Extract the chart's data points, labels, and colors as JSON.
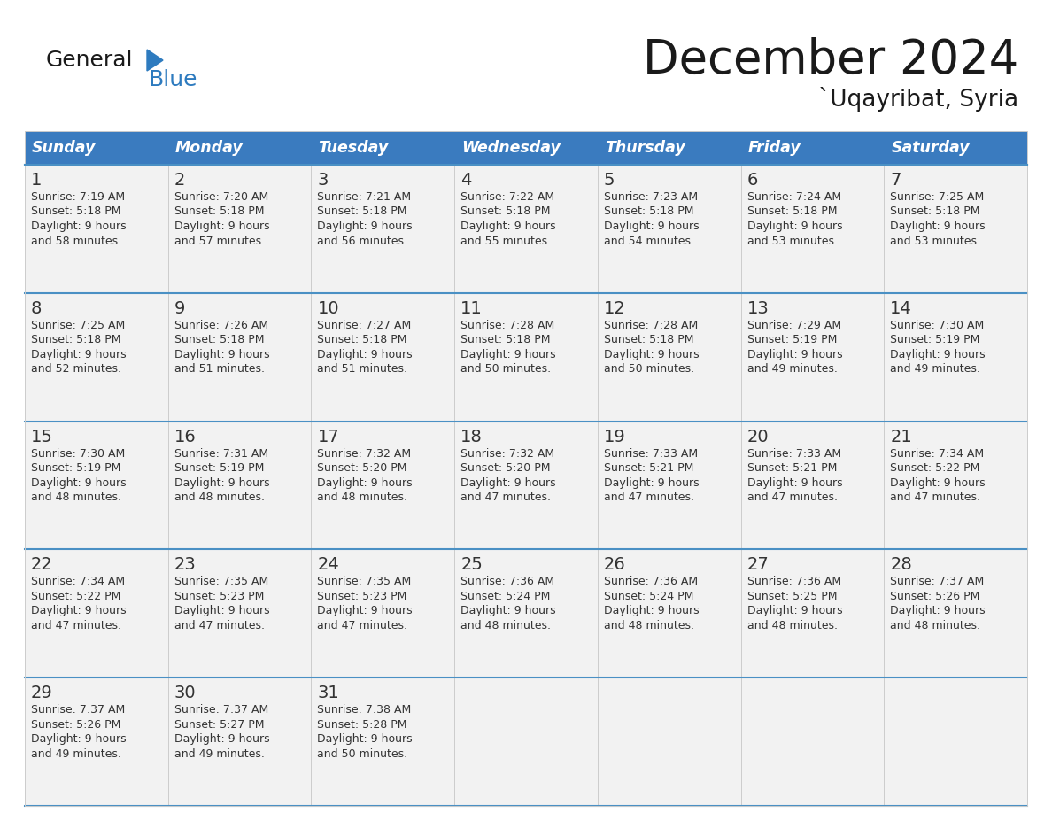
{
  "title": "December 2024",
  "subtitle": "`Uqayribat, Syria",
  "header_bg": "#3a7bbf",
  "header_text_color": "#FFFFFF",
  "cell_bg": "#f2f2f2",
  "row_separator_color": "#4a90c4",
  "col_separator_color": "#cccccc",
  "day_headers": [
    "Sunday",
    "Monday",
    "Tuesday",
    "Wednesday",
    "Thursday",
    "Friday",
    "Saturday"
  ],
  "days": [
    {
      "day": 1,
      "col": 0,
      "row": 0,
      "sunrise": "7:19 AM",
      "sunset": "5:18 PM",
      "daylight_mins": "58 minutes."
    },
    {
      "day": 2,
      "col": 1,
      "row": 0,
      "sunrise": "7:20 AM",
      "sunset": "5:18 PM",
      "daylight_mins": "57 minutes."
    },
    {
      "day": 3,
      "col": 2,
      "row": 0,
      "sunrise": "7:21 AM",
      "sunset": "5:18 PM",
      "daylight_mins": "56 minutes."
    },
    {
      "day": 4,
      "col": 3,
      "row": 0,
      "sunrise": "7:22 AM",
      "sunset": "5:18 PM",
      "daylight_mins": "55 minutes."
    },
    {
      "day": 5,
      "col": 4,
      "row": 0,
      "sunrise": "7:23 AM",
      "sunset": "5:18 PM",
      "daylight_mins": "54 minutes."
    },
    {
      "day": 6,
      "col": 5,
      "row": 0,
      "sunrise": "7:24 AM",
      "sunset": "5:18 PM",
      "daylight_mins": "53 minutes."
    },
    {
      "day": 7,
      "col": 6,
      "row": 0,
      "sunrise": "7:25 AM",
      "sunset": "5:18 PM",
      "daylight_mins": "53 minutes."
    },
    {
      "day": 8,
      "col": 0,
      "row": 1,
      "sunrise": "7:25 AM",
      "sunset": "5:18 PM",
      "daylight_mins": "52 minutes."
    },
    {
      "day": 9,
      "col": 1,
      "row": 1,
      "sunrise": "7:26 AM",
      "sunset": "5:18 PM",
      "daylight_mins": "51 minutes."
    },
    {
      "day": 10,
      "col": 2,
      "row": 1,
      "sunrise": "7:27 AM",
      "sunset": "5:18 PM",
      "daylight_mins": "51 minutes."
    },
    {
      "day": 11,
      "col": 3,
      "row": 1,
      "sunrise": "7:28 AM",
      "sunset": "5:18 PM",
      "daylight_mins": "50 minutes."
    },
    {
      "day": 12,
      "col": 4,
      "row": 1,
      "sunrise": "7:28 AM",
      "sunset": "5:18 PM",
      "daylight_mins": "50 minutes."
    },
    {
      "day": 13,
      "col": 5,
      "row": 1,
      "sunrise": "7:29 AM",
      "sunset": "5:19 PM",
      "daylight_mins": "49 minutes."
    },
    {
      "day": 14,
      "col": 6,
      "row": 1,
      "sunrise": "7:30 AM",
      "sunset": "5:19 PM",
      "daylight_mins": "49 minutes."
    },
    {
      "day": 15,
      "col": 0,
      "row": 2,
      "sunrise": "7:30 AM",
      "sunset": "5:19 PM",
      "daylight_mins": "48 minutes."
    },
    {
      "day": 16,
      "col": 1,
      "row": 2,
      "sunrise": "7:31 AM",
      "sunset": "5:19 PM",
      "daylight_mins": "48 minutes."
    },
    {
      "day": 17,
      "col": 2,
      "row": 2,
      "sunrise": "7:32 AM",
      "sunset": "5:20 PM",
      "daylight_mins": "48 minutes."
    },
    {
      "day": 18,
      "col": 3,
      "row": 2,
      "sunrise": "7:32 AM",
      "sunset": "5:20 PM",
      "daylight_mins": "47 minutes."
    },
    {
      "day": 19,
      "col": 4,
      "row": 2,
      "sunrise": "7:33 AM",
      "sunset": "5:21 PM",
      "daylight_mins": "47 minutes."
    },
    {
      "day": 20,
      "col": 5,
      "row": 2,
      "sunrise": "7:33 AM",
      "sunset": "5:21 PM",
      "daylight_mins": "47 minutes."
    },
    {
      "day": 21,
      "col": 6,
      "row": 2,
      "sunrise": "7:34 AM",
      "sunset": "5:22 PM",
      "daylight_mins": "47 minutes."
    },
    {
      "day": 22,
      "col": 0,
      "row": 3,
      "sunrise": "7:34 AM",
      "sunset": "5:22 PM",
      "daylight_mins": "47 minutes."
    },
    {
      "day": 23,
      "col": 1,
      "row": 3,
      "sunrise": "7:35 AM",
      "sunset": "5:23 PM",
      "daylight_mins": "47 minutes."
    },
    {
      "day": 24,
      "col": 2,
      "row": 3,
      "sunrise": "7:35 AM",
      "sunset": "5:23 PM",
      "daylight_mins": "47 minutes."
    },
    {
      "day": 25,
      "col": 3,
      "row": 3,
      "sunrise": "7:36 AM",
      "sunset": "5:24 PM",
      "daylight_mins": "48 minutes."
    },
    {
      "day": 26,
      "col": 4,
      "row": 3,
      "sunrise": "7:36 AM",
      "sunset": "5:24 PM",
      "daylight_mins": "48 minutes."
    },
    {
      "day": 27,
      "col": 5,
      "row": 3,
      "sunrise": "7:36 AM",
      "sunset": "5:25 PM",
      "daylight_mins": "48 minutes."
    },
    {
      "day": 28,
      "col": 6,
      "row": 3,
      "sunrise": "7:37 AM",
      "sunset": "5:26 PM",
      "daylight_mins": "48 minutes."
    },
    {
      "day": 29,
      "col": 0,
      "row": 4,
      "sunrise": "7:37 AM",
      "sunset": "5:26 PM",
      "daylight_mins": "49 minutes."
    },
    {
      "day": 30,
      "col": 1,
      "row": 4,
      "sunrise": "7:37 AM",
      "sunset": "5:27 PM",
      "daylight_mins": "49 minutes."
    },
    {
      "day": 31,
      "col": 2,
      "row": 4,
      "sunrise": "7:38 AM",
      "sunset": "5:28 PM",
      "daylight_mins": "50 minutes."
    }
  ],
  "logo_text_color": "#1a1a1a",
  "logo_blue_color": "#2e7bbf",
  "cell_text_color": "#333333",
  "daynum_color": "#333333",
  "title_color": "#1a1a1a",
  "subtitle_color": "#1a1a1a"
}
